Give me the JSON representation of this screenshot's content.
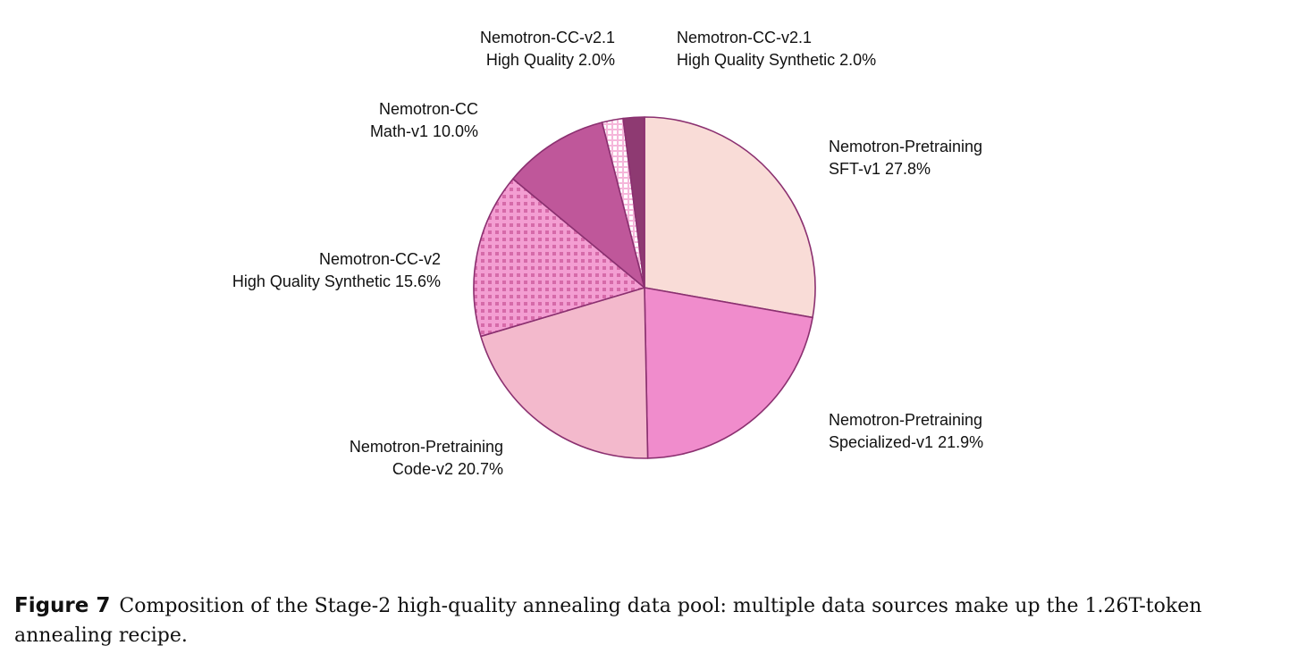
{
  "chart_data": {
    "type": "pie",
    "slices": [
      {
        "label_line1": "Nemotron-Pretraining",
        "label_line2": "SFT-v1 27.8%",
        "value": 27.8,
        "color": "#f9dcd7",
        "pattern": "none"
      },
      {
        "label_line1": "Nemotron-Pretraining",
        "label_line2": "Specialized-v1 21.9%",
        "value": 21.9,
        "color": "#f08ccc",
        "pattern": "none"
      },
      {
        "label_line1": "Nemotron-Pretraining",
        "label_line2": "Code-v2 20.7%",
        "value": 20.7,
        "color": "#f3b9cc",
        "pattern": "none"
      },
      {
        "label_line1": "Nemotron-CC-v2",
        "label_line2": "High Quality Synthetic 15.6%",
        "value": 15.6,
        "color": "#f39ed2",
        "pattern": "dots"
      },
      {
        "label_line1": "Nemotron-CC",
        "label_line2": "Math-v1 10.0%",
        "value": 10.0,
        "color": "#bf579a",
        "pattern": "none"
      },
      {
        "label_line1": "Nemotron-CC-v2.1",
        "label_line2": "High Quality 2.0%",
        "value": 2.0,
        "color": "#ffffff",
        "pattern": "grid"
      },
      {
        "label_line1": "Nemotron-CC-v2.1",
        "label_line2": "High Quality Synthetic 2.0%",
        "value": 2.0,
        "color": "#8e3a72",
        "pattern": "none"
      }
    ],
    "edge_color": "#8b3070",
    "start": "12 o'clock",
    "direction": "clockwise"
  },
  "caption": {
    "label": "Figure 7",
    "text": "Composition of the Stage-2 high-quality annealing data pool: multiple data sources make up the 1.26T-token annealing recipe."
  }
}
